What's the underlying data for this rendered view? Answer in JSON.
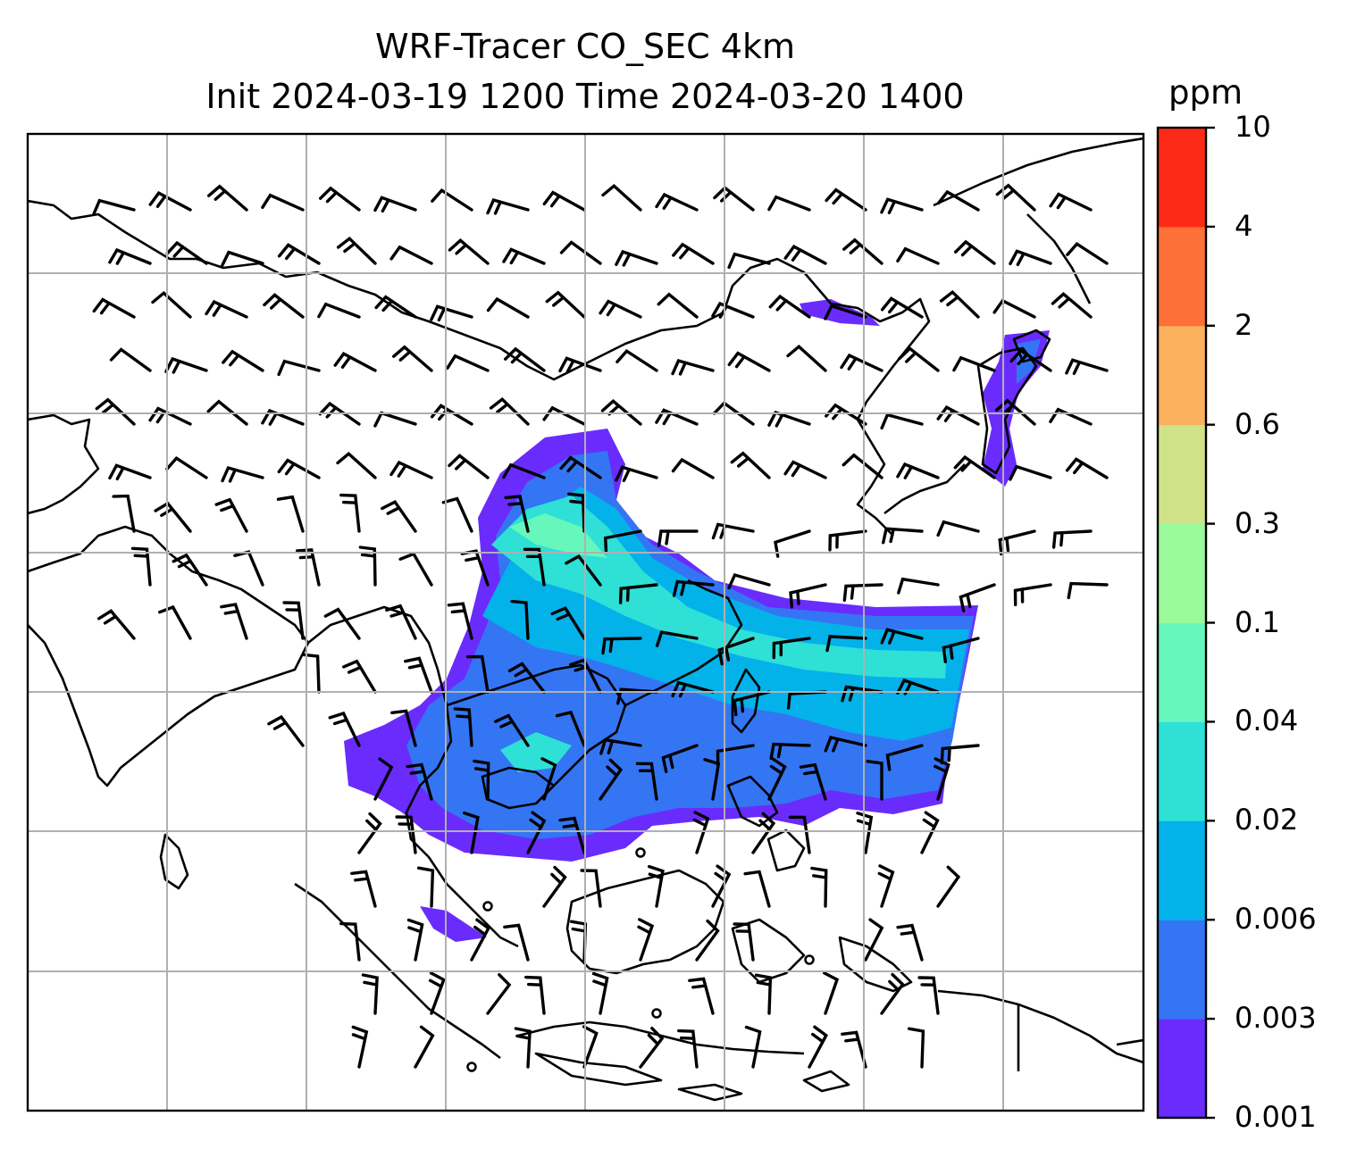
{
  "title": {
    "line1": "WRF-Tracer CO_SEC 4km",
    "line2": "Init 2024-03-19 1200 Time 2024-03-20 1400"
  },
  "colorbar": {
    "unit": "ppm",
    "levels": [
      "0.001",
      "0.003",
      "0.006",
      "0.02",
      "0.04",
      "0.1",
      "0.3",
      "0.6",
      "2",
      "4",
      "10"
    ],
    "colors": [
      "#6a2cfc",
      "#3475f4",
      "#04b2ea",
      "#2ee0d6",
      "#66f7bd",
      "#98fa99",
      "#cfe287",
      "#fcb15e",
      "#fd7038",
      "#fd2a17"
    ]
  },
  "map": {
    "variable": "CO_SEC tracer concentration",
    "overlay": "wind barbs",
    "coastline_color": "#000000",
    "gridline_color": "#b0b0b0"
  }
}
